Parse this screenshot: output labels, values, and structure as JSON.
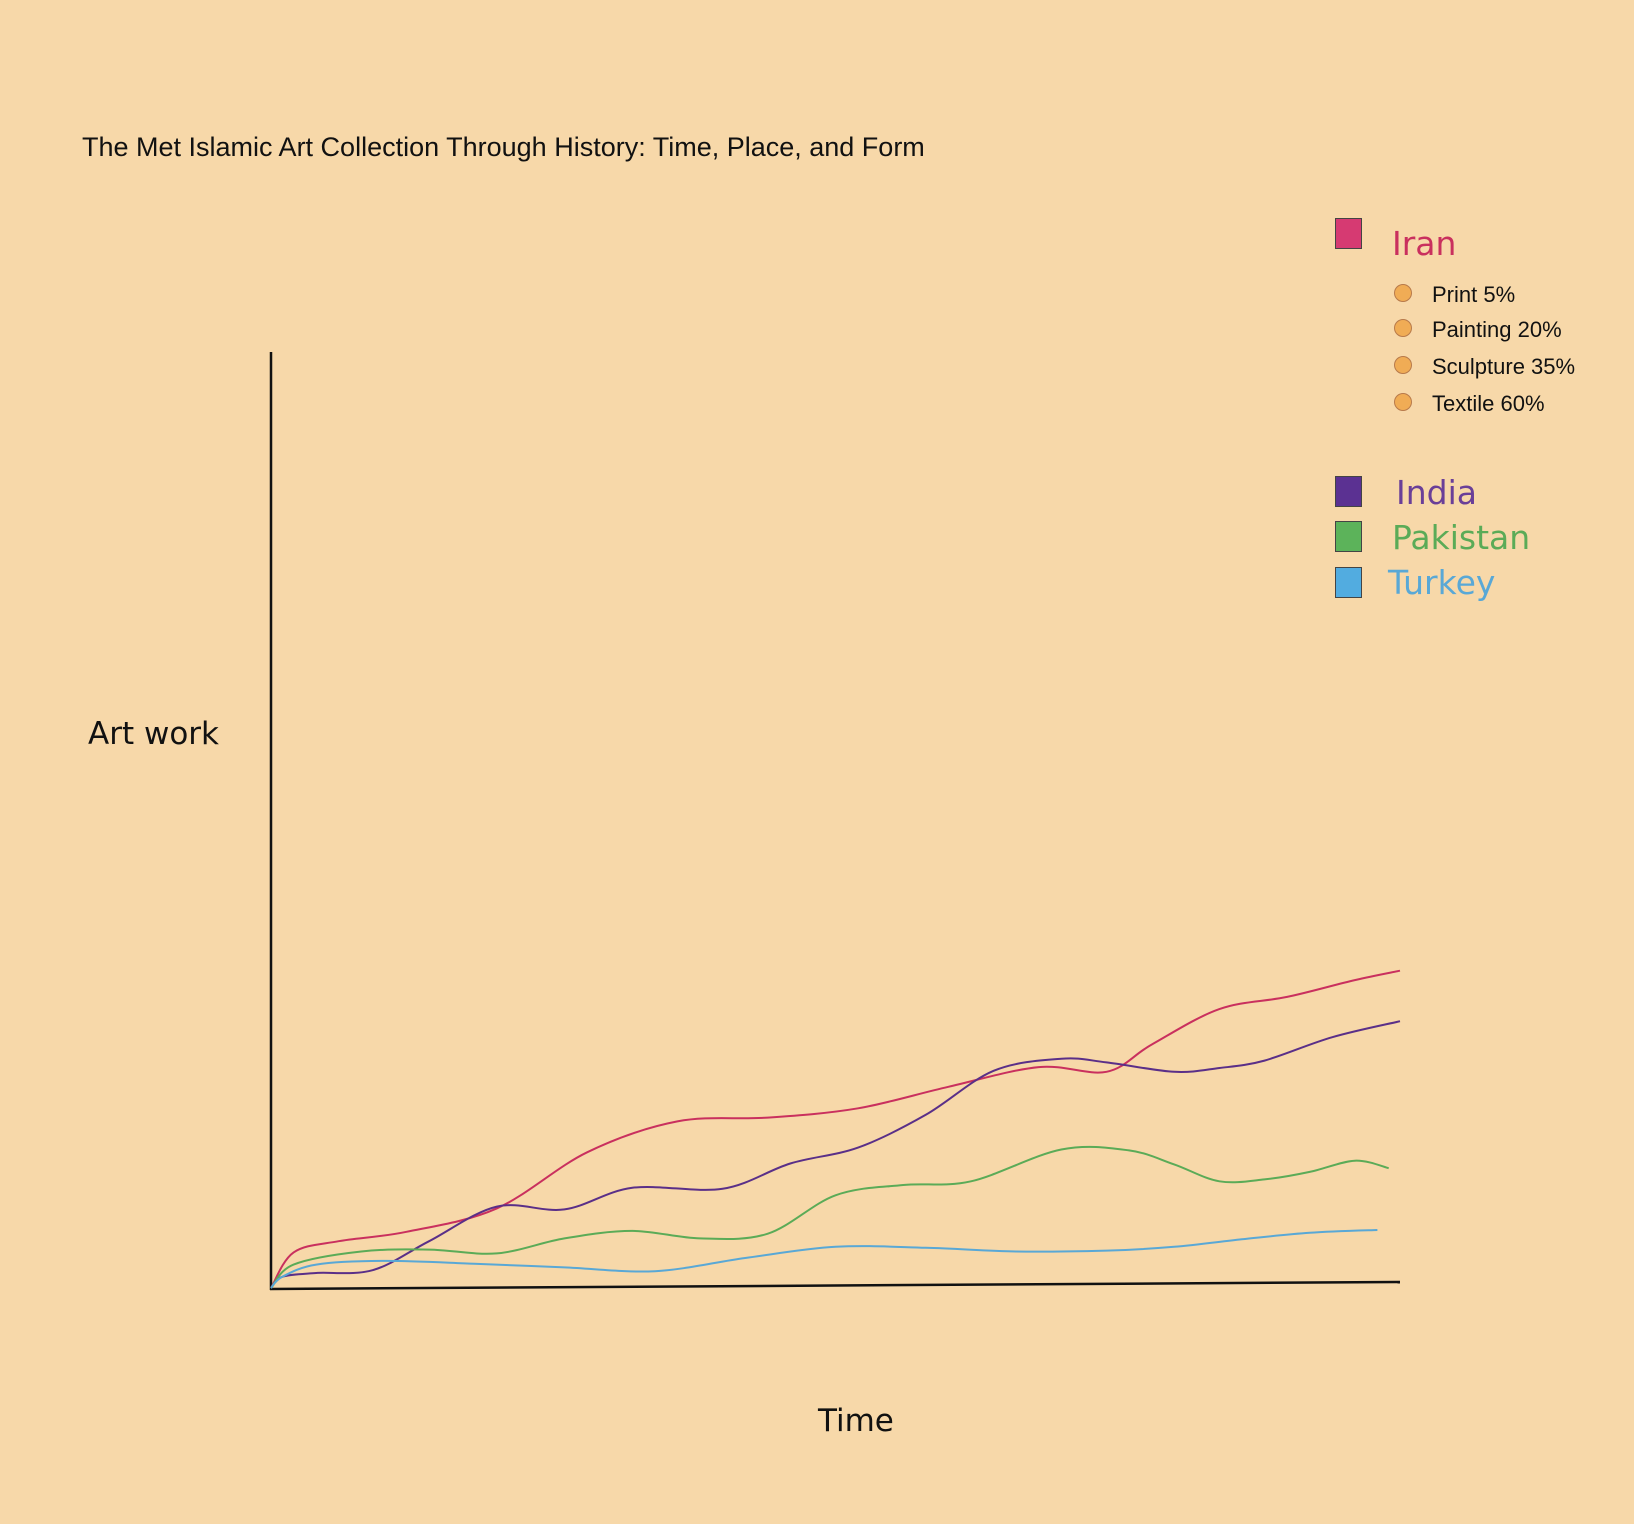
{
  "chart_data": {
    "type": "line",
    "title": "The Met Islamic Art Collection Through History: Time, Place, and Form",
    "xlabel": "Time",
    "ylabel": "Art work",
    "xlim": [
      0,
      100
    ],
    "ylim": [
      0,
      100
    ],
    "grid": false,
    "legend_position": "top-right",
    "series": [
      {
        "name": "Iran",
        "color": "#c9305e",
        "swatch_color": "#d63a72",
        "x": [
          0,
          2,
          6,
          12,
          20,
          28,
          36,
          44,
          52,
          60,
          68,
          74,
          78,
          84,
          90,
          96,
          100
        ],
        "y": [
          0,
          3.8,
          5.0,
          6.0,
          8.5,
          14.5,
          17.8,
          18.2,
          19.2,
          21.5,
          23.6,
          23.1,
          26.0,
          29.8,
          31.1,
          32.9,
          33.9
        ]
      },
      {
        "name": "India",
        "color": "#5a2f88",
        "swatch_color": "#5b3192",
        "x": [
          0,
          1,
          4,
          9,
          14,
          20,
          26,
          32,
          40,
          46,
          52,
          58,
          64,
          70,
          74,
          80,
          84,
          88,
          94,
          100
        ],
        "y": [
          0,
          1.2,
          1.6,
          1.9,
          5.0,
          8.7,
          8.4,
          10.7,
          10.6,
          13.3,
          15.0,
          18.5,
          23.2,
          24.5,
          24.1,
          23.1,
          23.5,
          24.3,
          26.8,
          28.5
        ]
      },
      {
        "name": "Pakistan",
        "color": "#5bab57",
        "swatch_color": "#5cb35a",
        "x": [
          0,
          2,
          8,
          14,
          20,
          26,
          32,
          38,
          44,
          50,
          56,
          62,
          70,
          76,
          80,
          84,
          88,
          92,
          96,
          99
        ],
        "y": [
          0,
          2.5,
          3.9,
          4.1,
          3.7,
          5.3,
          6.1,
          5.3,
          5.8,
          9.9,
          11.0,
          11.4,
          14.8,
          14.7,
          13.2,
          11.4,
          11.6,
          12.4,
          13.6,
          12.8
        ]
      },
      {
        "name": "Turkey",
        "color": "#59a8d6",
        "swatch_color": "#52ace0",
        "x": [
          0,
          1,
          4,
          10,
          18,
          26,
          34,
          42,
          50,
          58,
          66,
          74,
          80,
          86,
          92,
          98
        ],
        "y": [
          0,
          1.2,
          2.5,
          2.9,
          2.6,
          2.2,
          1.8,
          3.2,
          4.4,
          4.3,
          3.9,
          4.0,
          4.4,
          5.2,
          5.9,
          6.2
        ]
      }
    ],
    "iran_breakdown": [
      {
        "label": "Print 5%"
      },
      {
        "label": "Painting 20%"
      },
      {
        "label": "Sculpture 35%"
      },
      {
        "label": "Textile 60%"
      }
    ]
  }
}
